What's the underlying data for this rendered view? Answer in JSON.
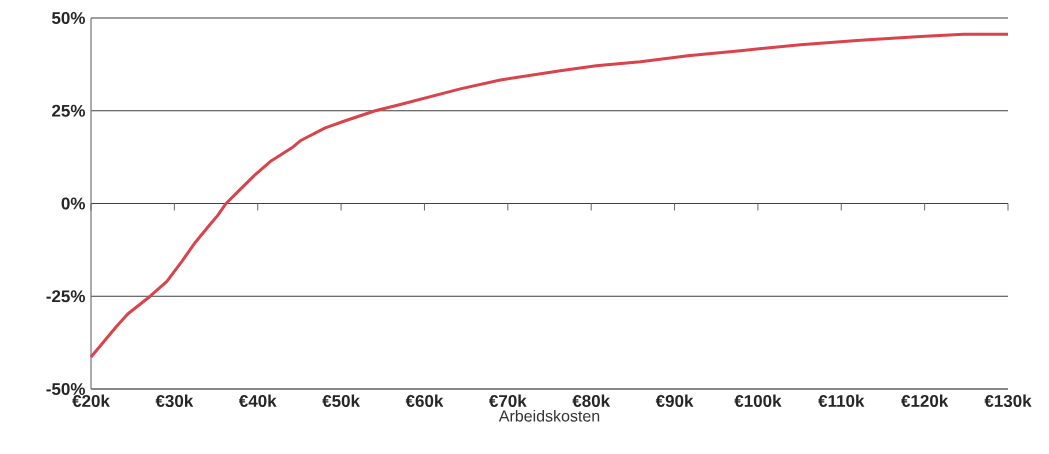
{
  "chart_data": {
    "type": "line",
    "xlabel": "Arbeidskosten",
    "x": [
      20,
      21.4,
      23,
      24.4,
      27.1,
      29.1,
      30.9,
      32.5,
      34.3,
      35.2,
      36.2,
      37.9,
      39.7,
      41.5,
      44.1,
      45.1,
      48.1,
      50.5,
      54.1,
      57.1,
      64.3,
      69.1,
      76.3,
      80.6,
      85.9,
      91.6,
      97.9,
      105.1,
      112.3,
      119.5,
      124.7,
      130
    ],
    "series": [
      {
        "color": "#d9434b",
        "values": [
          -41.4,
          -37.6,
          -33.3,
          -29.8,
          -25,
          -21,
          -15.6,
          -10.5,
          -5.6,
          -3.2,
          0,
          3.8,
          7.8,
          11.3,
          15,
          16.9,
          20.4,
          22.3,
          25,
          26.7,
          30.9,
          33.3,
          35.8,
          37.1,
          38.2,
          39.8,
          41.2,
          42.8,
          44,
          45,
          45.6,
          45.6
        ]
      }
    ],
    "xlim": [
      20,
      130
    ],
    "xticks": [
      {
        "value": 20,
        "label": "€20k"
      },
      {
        "value": 30,
        "label": "€30k"
      },
      {
        "value": 40,
        "label": "€40k"
      },
      {
        "value": 50,
        "label": "€50k"
      },
      {
        "value": 60,
        "label": "€60k"
      },
      {
        "value": 70,
        "label": "€70k"
      },
      {
        "value": 80,
        "label": "€80k"
      },
      {
        "value": 90,
        "label": "€90k"
      },
      {
        "value": 100,
        "label": "€100k"
      },
      {
        "value": 110,
        "label": "€110k"
      },
      {
        "value": 120,
        "label": "€120k"
      },
      {
        "value": 130,
        "label": "€130k"
      }
    ],
    "ylim": [
      -50,
      50
    ],
    "yticks": [
      {
        "value": -50,
        "label": "-50%"
      },
      {
        "value": -25,
        "label": "-25%"
      },
      {
        "value": 0,
        "label": "0%"
      },
      {
        "value": 25,
        "label": "25%"
      },
      {
        "value": 50,
        "label": "50%"
      }
    ],
    "grid": "y",
    "marker": "none",
    "line_style": "solid"
  }
}
